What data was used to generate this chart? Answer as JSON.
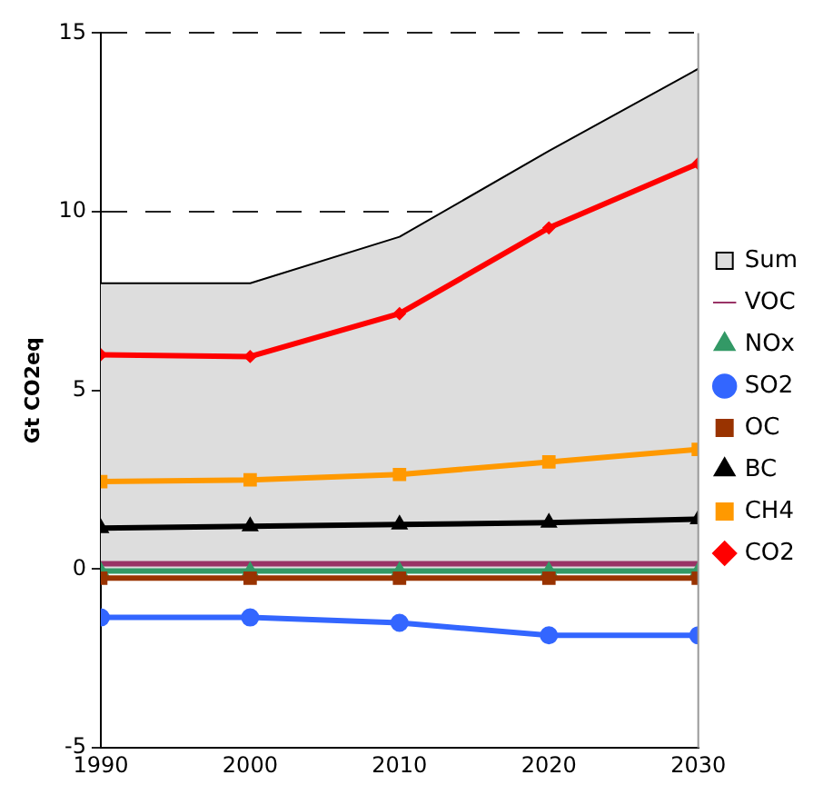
{
  "chart_data": {
    "type": "line",
    "ylabel": "Gt CO2eq",
    "x": [
      1990,
      2000,
      2010,
      2020,
      2030
    ],
    "xlim": [
      1990,
      2030
    ],
    "xticks": [
      1990,
      2000,
      2010,
      2020,
      2030
    ],
    "ylim": [
      -5,
      15
    ],
    "yticks": [
      -5,
      0,
      5,
      10,
      15
    ],
    "grid": "y",
    "legend": "right",
    "series": [
      {
        "name": "Sum",
        "type": "area",
        "color": "#dddddd",
        "marker": "none",
        "values": [
          8,
          8,
          9.3,
          11.7,
          14.0
        ]
      },
      {
        "name": "VOC",
        "color": "#993366",
        "marker": "none",
        "values": [
          0.15,
          0.15,
          0.15,
          0.15,
          0.15
        ]
      },
      {
        "name": "NOx",
        "color": "#339966",
        "marker": "triangle",
        "values": [
          -0.05,
          -0.05,
          -0.05,
          -0.05,
          -0.05
        ]
      },
      {
        "name": "SO2",
        "color": "#3366ff",
        "marker": "circle",
        "values": [
          -1.35,
          -1.35,
          -1.5,
          -1.85,
          -1.85
        ]
      },
      {
        "name": "OC",
        "color": "#993300",
        "marker": "square",
        "values": [
          -0.25,
          -0.25,
          -0.25,
          -0.25,
          -0.25
        ]
      },
      {
        "name": "BC",
        "color": "#000000",
        "marker": "triangle",
        "values": [
          1.15,
          1.2,
          1.25,
          1.3,
          1.4
        ]
      },
      {
        "name": "CH4",
        "color": "#ff9900",
        "marker": "square",
        "values": [
          2.45,
          2.5,
          2.65,
          3.0,
          3.35
        ]
      },
      {
        "name": "CO2",
        "color": "#ff0000",
        "marker": "diamond",
        "values": [
          6.0,
          5.95,
          7.15,
          9.55,
          11.35
        ]
      }
    ]
  }
}
